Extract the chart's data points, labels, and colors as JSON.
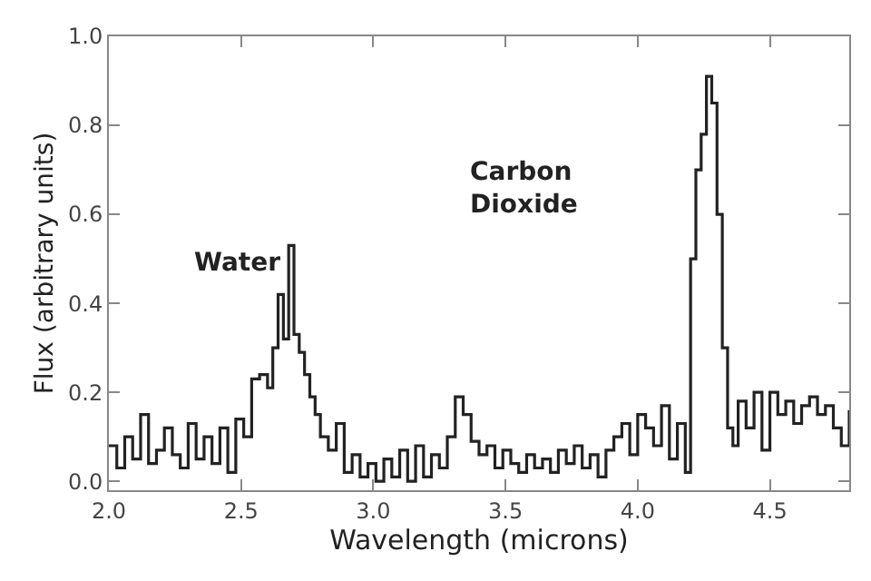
{
  "chart_data": {
    "type": "step",
    "xlabel": "Wavelength (microns)",
    "ylabel": "Flux (arbitrary units)",
    "x": [
      2.0,
      2.03,
      2.06,
      2.09,
      2.12,
      2.15,
      2.18,
      2.21,
      2.24,
      2.27,
      2.3,
      2.33,
      2.36,
      2.39,
      2.42,
      2.45,
      2.48,
      2.51,
      2.54,
      2.57,
      2.6,
      2.62,
      2.64,
      2.66,
      2.68,
      2.7,
      2.72,
      2.74,
      2.76,
      2.78,
      2.8,
      2.83,
      2.86,
      2.89,
      2.92,
      2.95,
      2.98,
      3.01,
      3.04,
      3.07,
      3.1,
      3.13,
      3.16,
      3.19,
      3.22,
      3.25,
      3.28,
      3.31,
      3.34,
      3.37,
      3.4,
      3.43,
      3.46,
      3.49,
      3.52,
      3.55,
      3.58,
      3.61,
      3.64,
      3.67,
      3.7,
      3.73,
      3.76,
      3.79,
      3.82,
      3.85,
      3.88,
      3.91,
      3.94,
      3.97,
      4.0,
      4.03,
      4.06,
      4.09,
      4.12,
      4.15,
      4.18,
      4.2,
      4.22,
      4.24,
      4.26,
      4.28,
      4.3,
      4.32,
      4.34,
      4.36,
      4.38,
      4.41,
      4.44,
      4.47,
      4.5,
      4.53,
      4.56,
      4.59,
      4.62,
      4.65,
      4.68,
      4.71,
      4.74,
      4.77,
      4.8
    ],
    "values": [
      0.08,
      0.03,
      0.1,
      0.05,
      0.15,
      0.04,
      0.07,
      0.12,
      0.06,
      0.03,
      0.13,
      0.05,
      0.1,
      0.04,
      0.12,
      0.02,
      0.14,
      0.1,
      0.23,
      0.24,
      0.21,
      0.3,
      0.42,
      0.32,
      0.53,
      0.33,
      0.29,
      0.24,
      0.19,
      0.15,
      0.1,
      0.07,
      0.13,
      0.02,
      0.06,
      0.01,
      0.04,
      0.0,
      0.05,
      0.01,
      0.07,
      0.0,
      0.08,
      0.01,
      0.06,
      0.03,
      0.1,
      0.19,
      0.15,
      0.09,
      0.06,
      0.08,
      0.03,
      0.07,
      0.04,
      0.02,
      0.06,
      0.03,
      0.05,
      0.02,
      0.07,
      0.04,
      0.08,
      0.03,
      0.06,
      0.01,
      0.07,
      0.1,
      0.13,
      0.06,
      0.15,
      0.12,
      0.08,
      0.17,
      0.05,
      0.13,
      0.02,
      0.5,
      0.7,
      0.78,
      0.91,
      0.85,
      0.6,
      0.3,
      0.12,
      0.08,
      0.18,
      0.12,
      0.2,
      0.07,
      0.2,
      0.15,
      0.18,
      0.13,
      0.17,
      0.19,
      0.15,
      0.17,
      0.12,
      0.08,
      0.16
    ],
    "color": "#222222",
    "xlim": [
      2.0,
      4.8
    ],
    "ylim": [
      -0.02,
      1.0
    ],
    "xticks": [
      {
        "value": 2.0,
        "label": "2.0"
      },
      {
        "value": 2.5,
        "label": "2.5"
      },
      {
        "value": 3.0,
        "label": "3.0"
      },
      {
        "value": 3.5,
        "label": "3.5"
      },
      {
        "value": 4.0,
        "label": "4.0"
      },
      {
        "value": 4.5,
        "label": "4.5"
      }
    ],
    "yticks": [
      {
        "value": 0.0,
        "label": "0.0"
      },
      {
        "value": 0.2,
        "label": "0.2"
      },
      {
        "value": 0.4,
        "label": "0.4"
      },
      {
        "value": 0.6,
        "label": "0.6"
      },
      {
        "value": 0.8,
        "label": "0.8"
      },
      {
        "value": 1.0,
        "label": "1.0"
      }
    ],
    "annotations": [
      "Water",
      "Carbon\nDioxide"
    ]
  }
}
